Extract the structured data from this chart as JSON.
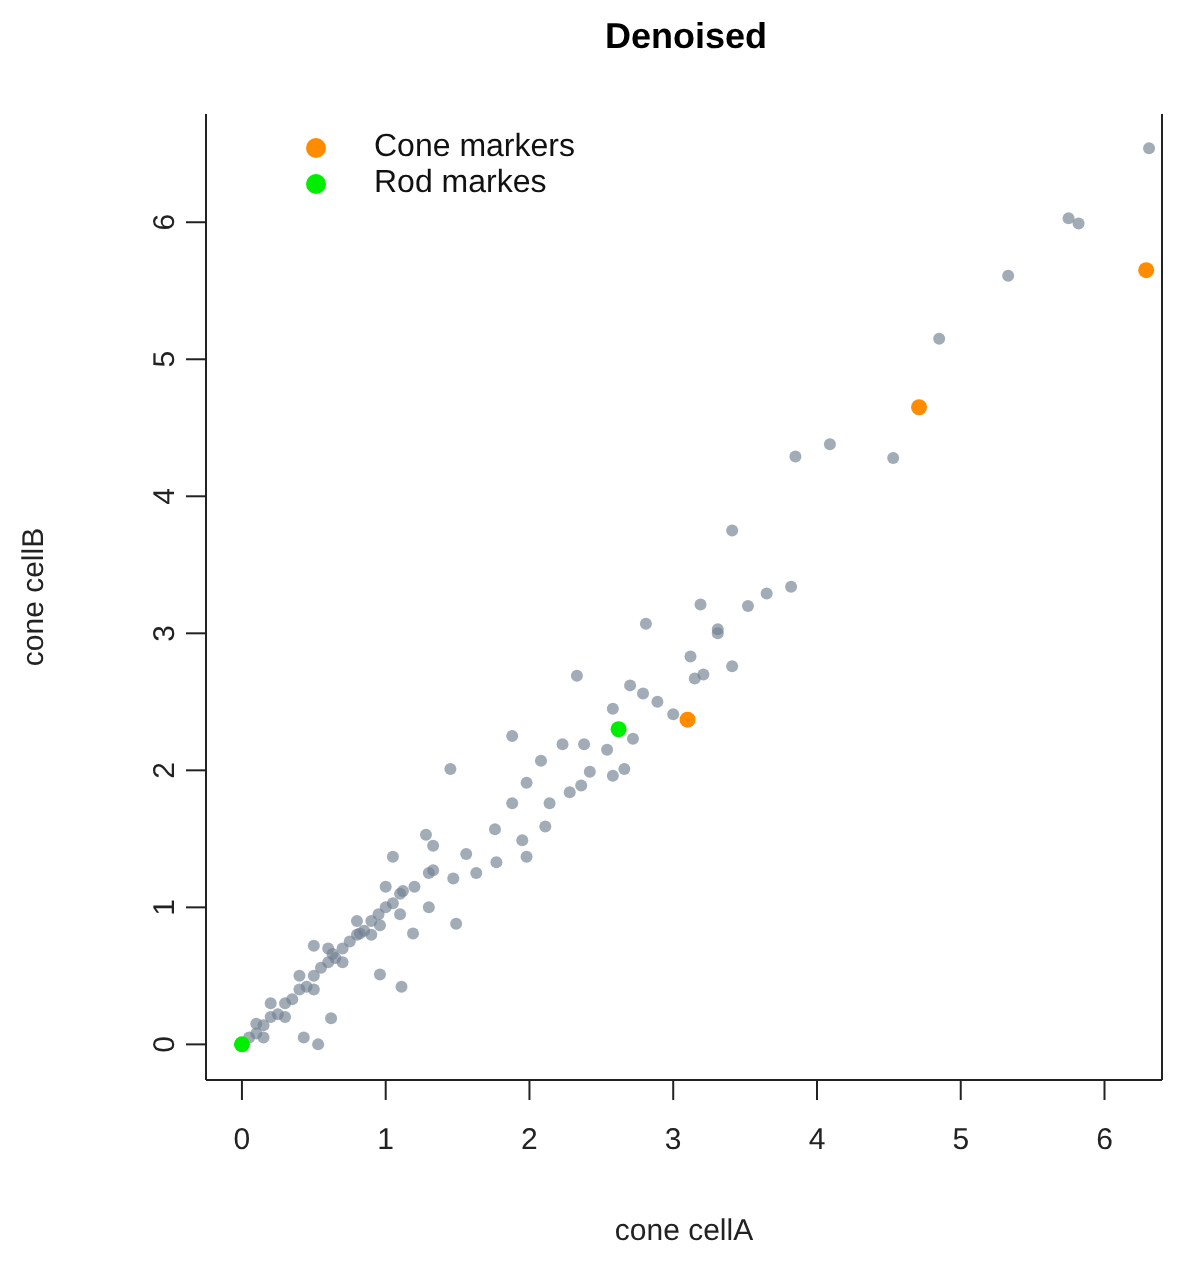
{
  "chart_data": {
    "type": "scatter",
    "title": "Denoised",
    "xlabel": "cone cellA",
    "ylabel": "cone cellB",
    "xlim": [
      -0.25,
      6.4
    ],
    "ylim": [
      -0.26,
      6.79
    ],
    "xticks": [
      0,
      1,
      2,
      3,
      4,
      5,
      6
    ],
    "yticks": [
      0,
      1,
      2,
      3,
      4,
      5,
      6
    ],
    "grid": false,
    "legend": "top left",
    "marker": "circle",
    "series": [
      {
        "color": "#708090",
        "x": [
          6.31,
          5.75,
          5.82,
          5.33,
          4.85,
          4.09,
          3.85,
          4.53,
          3.41,
          3.82,
          3.65,
          3.19,
          3.52,
          3.31,
          3.31,
          2.81,
          3.41,
          3.12,
          3.15,
          3.21,
          2.33,
          2.7,
          2.79,
          2.89,
          3.0,
          2.58,
          1.88,
          2.72,
          2.54,
          2.23,
          2.38,
          2.66,
          2.58,
          2.42,
          1.45,
          2.08,
          2.28,
          2.36,
          2.14,
          1.98,
          1.88,
          1.76,
          1.95,
          2.11,
          1.28,
          1.33,
          1.56,
          1.05,
          1.77,
          1.98,
          1.33,
          1.47,
          1.63,
          1.12,
          1.49,
          1.3,
          0.96,
          1.19,
          0.82,
          0.96,
          1.11,
          0.62,
          0.43,
          0.53,
          0.5,
          0.63,
          0.05,
          0.1,
          0.15,
          0.2,
          0.25,
          0.3,
          0.35,
          0.4,
          0.45,
          0.5,
          0.55,
          0.6,
          0.65,
          0.7,
          0.75,
          0.8,
          0.85,
          0.9,
          0.95,
          1.0,
          1.05,
          1.1,
          1.2,
          1.3,
          0.2,
          0.3,
          0.4,
          0.5,
          0.6,
          0.7,
          0.8,
          0.9,
          1.0,
          1.1,
          0.1,
          0.15
        ],
        "values": [
          6.54,
          6.03,
          5.99,
          5.61,
          5.15,
          4.38,
          4.29,
          4.28,
          3.75,
          3.34,
          3.29,
          3.21,
          3.2,
          3.03,
          3.0,
          3.07,
          2.76,
          2.83,
          2.67,
          2.7,
          2.69,
          2.62,
          2.56,
          2.5,
          2.41,
          2.45,
          2.25,
          2.23,
          2.15,
          2.19,
          2.19,
          2.01,
          1.96,
          1.99,
          2.01,
          2.07,
          1.84,
          1.89,
          1.76,
          1.91,
          1.76,
          1.57,
          1.49,
          1.59,
          1.53,
          1.45,
          1.39,
          1.37,
          1.33,
          1.37,
          1.27,
          1.21,
          1.25,
          1.12,
          0.88,
          1.0,
          0.87,
          0.81,
          0.81,
          0.51,
          0.42,
          0.19,
          0.05,
          0.0,
          0.72,
          0.66,
          0.05,
          0.08,
          0.14,
          0.2,
          0.22,
          0.3,
          0.33,
          0.4,
          0.42,
          0.5,
          0.56,
          0.6,
          0.63,
          0.7,
          0.75,
          0.8,
          0.83,
          0.9,
          0.95,
          1.0,
          1.03,
          1.1,
          1.15,
          1.25,
          0.3,
          0.2,
          0.5,
          0.4,
          0.7,
          0.6,
          0.9,
          0.8,
          1.15,
          0.95,
          0.15,
          0.05
        ]
      },
      {
        "name": "Cone markers",
        "color": "#ff8c00",
        "x": [
          6.29,
          4.71,
          3.1
        ],
        "values": [
          5.65,
          4.65,
          2.37
        ]
      },
      {
        "name": "Rod markes",
        "color": "#00ee00",
        "x": [
          2.62,
          0.0
        ],
        "values": [
          2.3,
          0.0
        ]
      }
    ]
  }
}
